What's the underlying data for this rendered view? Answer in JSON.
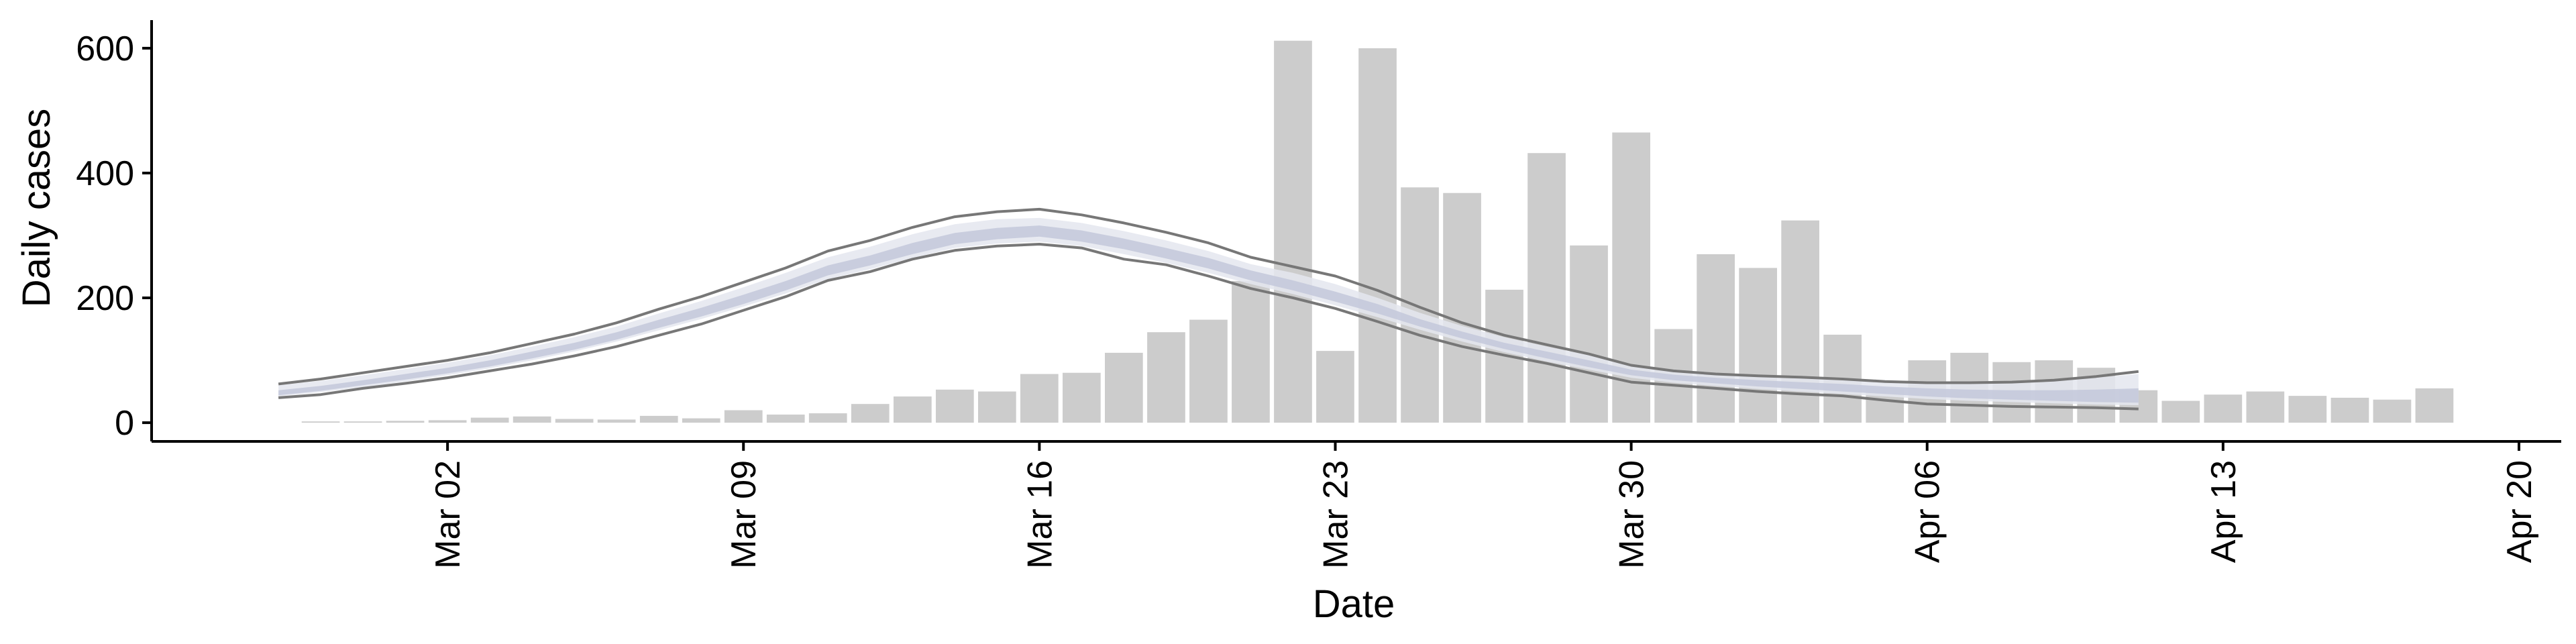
{
  "chart_data": {
    "type": "bar",
    "xlabel": "Date",
    "ylabel": "Daily cases",
    "ylim": [
      -30,
      645
    ],
    "yticks": [
      0,
      200,
      400,
      600
    ],
    "xlim": [
      "2020-02-24",
      "2020-04-21"
    ],
    "xticks": [
      {
        "date": "2020-03-02",
        "label": "Mar 02"
      },
      {
        "date": "2020-03-09",
        "label": "Mar 09"
      },
      {
        "date": "2020-03-16",
        "label": "Mar 16"
      },
      {
        "date": "2020-03-23",
        "label": "Mar 23"
      },
      {
        "date": "2020-03-30",
        "label": "Mar 30"
      },
      {
        "date": "2020-04-06",
        "label": "Apr 06"
      },
      {
        "date": "2020-04-13",
        "label": "Apr 13"
      },
      {
        "date": "2020-04-20",
        "label": "Apr 20"
      }
    ],
    "grid": false,
    "legend": "none",
    "colors": {
      "bars": "#cccccc",
      "band_outer": "#e4e6ef",
      "band_inner": "#c3c8da",
      "bound_lines": "#777777",
      "axis": "#000000"
    },
    "bars": {
      "start_date": "2020-02-28",
      "values": [
        2,
        2,
        3,
        4,
        8,
        10,
        6,
        5,
        11,
        7,
        20,
        13,
        15,
        30,
        42,
        53,
        50,
        78,
        80,
        112,
        145,
        165,
        227,
        612,
        115,
        600,
        377,
        368,
        213,
        432,
        284,
        465,
        150,
        270,
        248,
        324,
        141,
        55,
        100,
        112,
        97,
        100,
        88,
        52,
        35,
        45,
        50,
        43,
        40,
        37,
        55
      ]
    },
    "estimate": {
      "start_date": "2020-02-27",
      "upper": [
        62,
        70,
        80,
        90,
        100,
        112,
        127,
        142,
        160,
        182,
        202,
        225,
        248,
        275,
        292,
        313,
        330,
        338,
        342,
        333,
        320,
        305,
        288,
        265,
        250,
        235,
        212,
        185,
        160,
        140,
        125,
        110,
        92,
        83,
        78,
        75,
        73,
        70,
        66,
        64,
        64,
        65,
        68,
        74,
        82
      ],
      "outer_upper": [
        60,
        67,
        76,
        86,
        96,
        108,
        122,
        137,
        154,
        175,
        195,
        217,
        240,
        265,
        282,
        302,
        318,
        326,
        328,
        320,
        307,
        292,
        275,
        254,
        240,
        222,
        200,
        176,
        155,
        137,
        122,
        108,
        92,
        84,
        79,
        76,
        74,
        71,
        68,
        66,
        66,
        66,
        68,
        72,
        78
      ],
      "inner_upper": [
        52,
        59,
        68,
        78,
        88,
        100,
        114,
        128,
        145,
        165,
        184,
        205,
        227,
        252,
        268,
        288,
        304,
        312,
        316,
        308,
        295,
        280,
        264,
        244,
        228,
        210,
        190,
        166,
        146,
        128,
        114,
        100,
        85,
        77,
        72,
        68,
        65,
        62,
        58,
        55,
        53,
        52,
        52,
        53,
        55
      ],
      "inner_lower": [
        44,
        51,
        60,
        69,
        79,
        90,
        103,
        117,
        133,
        152,
        170,
        190,
        212,
        236,
        252,
        270,
        286,
        294,
        298,
        290,
        278,
        263,
        247,
        228,
        212,
        194,
        175,
        154,
        135,
        118,
        103,
        89,
        76,
        68,
        63,
        58,
        54,
        50,
        46,
        42,
        39,
        37,
        35,
        33,
        32
      ],
      "outer_lower": [
        42,
        49,
        57,
        66,
        76,
        87,
        100,
        114,
        130,
        148,
        166,
        186,
        207,
        230,
        246,
        264,
        280,
        287,
        290,
        283,
        270,
        256,
        240,
        222,
        206,
        188,
        169,
        149,
        130,
        113,
        98,
        85,
        72,
        64,
        59,
        54,
        50,
        46,
        42,
        38,
        35,
        33,
        31,
        29,
        28
      ],
      "lower": [
        40,
        45,
        55,
        63,
        72,
        83,
        94,
        107,
        122,
        140,
        158,
        180,
        202,
        228,
        242,
        262,
        276,
        283,
        286,
        280,
        262,
        253,
        235,
        215,
        200,
        183,
        162,
        140,
        122,
        108,
        95,
        80,
        65,
        60,
        55,
        50,
        46,
        43,
        36,
        30,
        28,
        26,
        25,
        24,
        22
      ]
    }
  }
}
